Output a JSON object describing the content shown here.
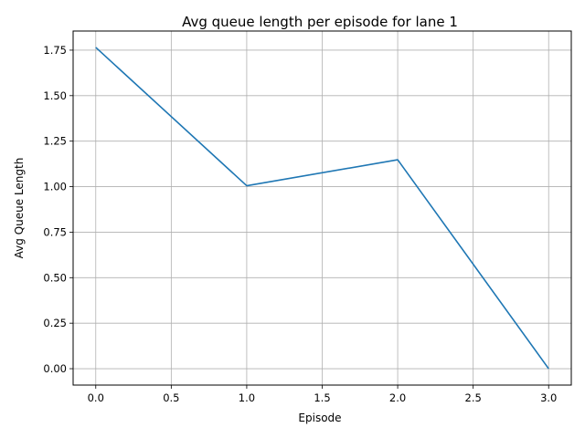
{
  "chart_data": {
    "type": "line",
    "title": "Avg queue length per episode for lane 1",
    "xlabel": "Episode",
    "ylabel": "Avg Queue Length",
    "x": [
      0,
      1,
      2,
      3
    ],
    "series": [
      {
        "values": [
          1.765,
          1.005,
          1.148,
          0.0
        ]
      }
    ],
    "xlim": [
      -0.15,
      3.15
    ],
    "ylim": [
      -0.09,
      1.855
    ],
    "xticks": [
      0.0,
      0.5,
      1.0,
      1.5,
      2.0,
      2.5,
      3.0
    ],
    "xtick_labels": [
      "0.0",
      "0.5",
      "1.0",
      "1.5",
      "2.0",
      "2.5",
      "3.0"
    ],
    "yticks": [
      0.0,
      0.25,
      0.5,
      0.75,
      1.0,
      1.25,
      1.5,
      1.75
    ],
    "ytick_labels": [
      "0.00",
      "0.25",
      "0.50",
      "0.75",
      "1.00",
      "1.25",
      "1.50",
      "1.75"
    ],
    "grid": true,
    "legend": "none",
    "colors": {
      "line": "#1f77b4",
      "grid": "#b0b0b0",
      "axes": "#000000"
    }
  }
}
